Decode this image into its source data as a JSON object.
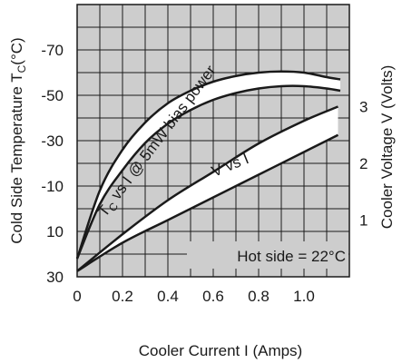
{
  "chart_data": {
    "type": "line",
    "title": "",
    "xlabel": "Cooler Current  I (Amps)",
    "ylabel_left": "Cold Side Temperature T",
    "ylabel_left_subscript": "C",
    "ylabel_left_unit": "(°C)",
    "ylabel_right": "Cooler Voltage V (Volts)",
    "xlim": [
      0,
      1.2
    ],
    "ylim_left": [
      30,
      -90
    ],
    "ylim_right": [
      0,
      4.8
    ],
    "grid": true,
    "x_ticks": [
      "0",
      "0.2",
      "0.4",
      "0.6",
      "0.8",
      "1.0"
    ],
    "x_tick_values": [
      0,
      0.2,
      0.4,
      0.6,
      0.8,
      1.0
    ],
    "y_left_ticks": [
      "30",
      "10",
      "-10",
      "-30",
      "-50",
      "-70"
    ],
    "y_left_tick_values": [
      30,
      10,
      -10,
      -30,
      -50,
      -70
    ],
    "y_right_ticks": [
      "1",
      "2",
      "3"
    ],
    "y_right_tick_values": [
      1,
      2,
      3
    ],
    "series": [
      {
        "axis": "left",
        "band": "temperature",
        "upper": {
          "x": [
            0,
            0.1,
            0.2,
            0.3,
            0.4,
            0.5,
            0.6,
            0.7,
            0.8,
            0.9,
            1.0,
            1.1,
            1.16
          ],
          "y": [
            22,
            -8,
            -26,
            -38,
            -46.5,
            -52,
            -56,
            -58.5,
            -60,
            -60.5,
            -60,
            -58,
            -57
          ]
        },
        "lower": {
          "x": [
            0,
            0.1,
            0.2,
            0.3,
            0.4,
            0.5,
            0.6,
            0.7,
            0.8,
            0.9,
            1.0,
            1.1,
            1.16
          ],
          "y": [
            22,
            -2,
            -17,
            -29,
            -37.5,
            -43.5,
            -48,
            -51,
            -53,
            -54,
            -54,
            -53,
            -52
          ]
        }
      },
      {
        "axis": "right",
        "band": "voltage",
        "upper": {
          "x": [
            0,
            0.2,
            0.4,
            0.6,
            0.8,
            1.0,
            1.15
          ],
          "y": [
            0.1,
            0.75,
            1.35,
            1.85,
            2.35,
            2.75,
            3.0
          ]
        },
        "lower": {
          "x": [
            0,
            0.2,
            0.4,
            0.6,
            0.8,
            1.0,
            1.15
          ],
          "y": [
            0.1,
            0.6,
            1.0,
            1.4,
            1.8,
            2.2,
            2.5
          ]
        }
      }
    ],
    "annotations": {
      "tc_label_main": "T",
      "tc_label_sub": "C",
      "tc_label_rest": " vs I @ 5mW bias power",
      "v_label": "V vs I",
      "hot_side": "Hot side = 22°C"
    }
  }
}
